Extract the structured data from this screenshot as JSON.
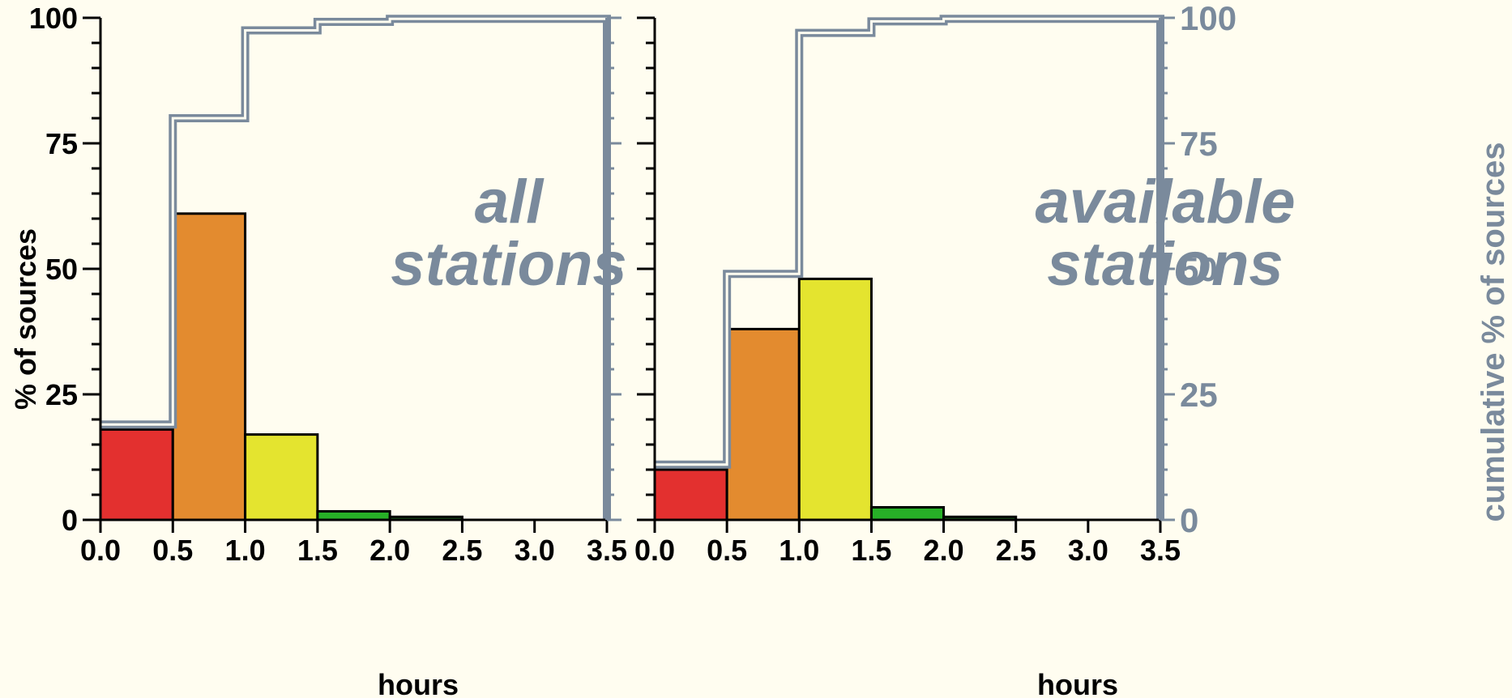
{
  "colors": {
    "background": "#fffdf0",
    "axis": "#000000",
    "cumulative": "#7a8a9c",
    "bins": [
      "#e3302f",
      "#e38b2f",
      "#e4e42f",
      "#27b027",
      "#1f6e1f",
      "#1f6e1f",
      "#1f6e1f"
    ]
  },
  "chart_data": [
    {
      "type": "bar",
      "label_lines": [
        "all",
        "stations"
      ],
      "xlabel": "hours",
      "ylabel": "% of sources",
      "x_ticks": [
        "0.0",
        "0.5",
        "1.0",
        "1.5",
        "2.0",
        "2.5",
        "3.0",
        "3.5"
      ],
      "y_ticks": [
        "0",
        "25",
        "50",
        "75",
        "100"
      ],
      "xlim": [
        0,
        3.5
      ],
      "ylim": [
        0,
        100
      ],
      "bin_edges": [
        0,
        0.5,
        1.0,
        1.5,
        2.0,
        2.5,
        3.0,
        3.5
      ],
      "values": [
        18,
        61,
        17,
        1.7,
        0.6,
        0,
        0
      ],
      "cumulative": [
        19,
        80,
        97.5,
        99.2,
        99.8,
        99.8,
        99.8
      ]
    },
    {
      "type": "bar",
      "label_lines": [
        "available",
        "stations"
      ],
      "xlabel": "hours",
      "y2label": "cumulative % of sources",
      "x_ticks": [
        "0.0",
        "0.5",
        "1.0",
        "1.5",
        "2.0",
        "2.5",
        "3.0",
        "3.5"
      ],
      "y2_ticks": [
        "0",
        "25",
        "50",
        "75",
        "100"
      ],
      "xlim": [
        0,
        3.5
      ],
      "ylim": [
        0,
        100
      ],
      "bin_edges": [
        0,
        0.5,
        1.0,
        1.5,
        2.0,
        2.5,
        3.0,
        3.5
      ],
      "values": [
        10,
        38,
        48,
        2.5,
        0.6,
        0,
        0
      ],
      "cumulative": [
        11,
        49,
        97,
        99.3,
        99.8,
        99.8,
        99.8
      ]
    }
  ]
}
